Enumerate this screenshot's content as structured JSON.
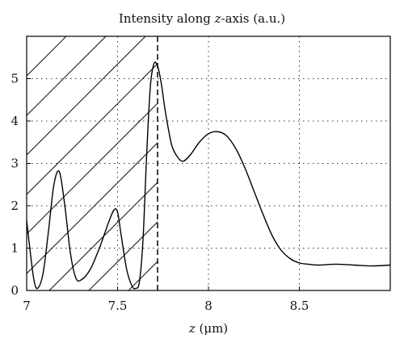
{
  "chart_data": {
    "type": "line",
    "title": "Intensity along z-axis (a.u.)",
    "title_parts": [
      "Intensity along ",
      "z",
      "-axis (a.u.)"
    ],
    "xlabel": "z (μm)",
    "xlabel_parts": [
      "z",
      " (μm)"
    ],
    "ylabel": "",
    "xlim": [
      7.0,
      9.0
    ],
    "ylim": [
      0,
      6
    ],
    "xticks": [
      "7",
      "7.5",
      "8",
      "8.5"
    ],
    "xtick_values": [
      7.0,
      7.5,
      8.0,
      8.5
    ],
    "yticks": [
      "0",
      "1",
      "2",
      "3",
      "4",
      "5"
    ],
    "ytick_values": [
      0,
      1,
      2,
      3,
      4,
      5
    ],
    "grid": "dotted",
    "shaded_region": {
      "x_start": 7.0,
      "x_end": 7.72,
      "pattern": "diagonal-hatch"
    },
    "boundary_line": {
      "x": 7.72,
      "style": "dashed"
    },
    "series": [
      {
        "x": [
          7.0,
          7.02,
          7.04,
          7.06,
          7.09,
          7.12,
          7.15,
          7.18,
          7.21,
          7.24,
          7.27,
          7.3,
          7.35,
          7.4,
          7.45,
          7.48,
          7.5,
          7.52,
          7.55,
          7.58,
          7.6,
          7.62,
          7.64,
          7.66,
          7.68,
          7.7,
          7.72,
          7.74,
          7.76,
          7.78,
          7.8,
          7.83,
          7.86,
          7.9,
          7.95,
          8.0,
          8.05,
          8.1,
          8.15,
          8.2,
          8.25,
          8.3,
          8.35,
          8.4,
          8.45,
          8.5,
          8.55,
          8.6,
          8.7,
          8.8,
          8.9,
          9.0
        ],
        "values": [
          1.65,
          0.9,
          0.25,
          0.05,
          0.4,
          1.4,
          2.5,
          2.8,
          2.0,
          0.9,
          0.3,
          0.25,
          0.5,
          1.0,
          1.6,
          1.9,
          1.85,
          1.3,
          0.5,
          0.1,
          0.05,
          0.2,
          1.2,
          3.2,
          4.8,
          5.35,
          5.3,
          4.9,
          4.3,
          3.8,
          3.4,
          3.15,
          3.05,
          3.2,
          3.5,
          3.7,
          3.75,
          3.65,
          3.35,
          2.9,
          2.35,
          1.8,
          1.3,
          0.95,
          0.75,
          0.65,
          0.62,
          0.6,
          0.62,
          0.6,
          0.58,
          0.6
        ]
      }
    ]
  }
}
